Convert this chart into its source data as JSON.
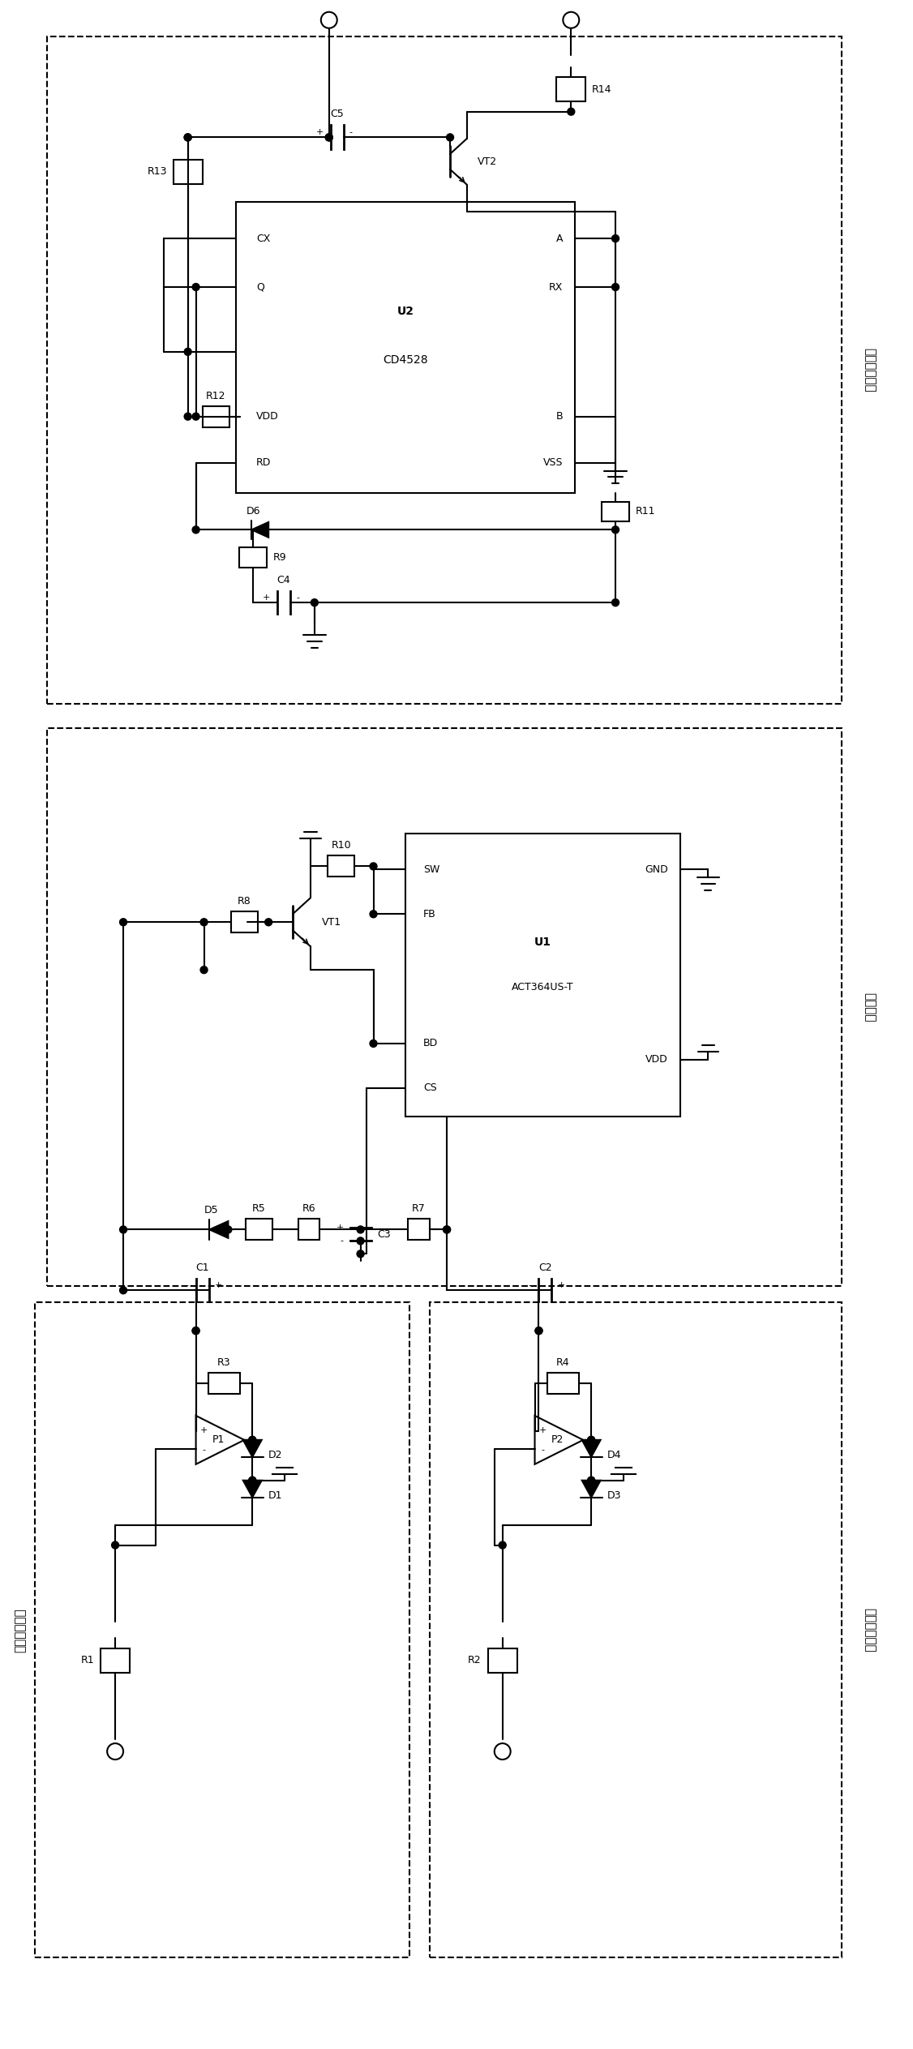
{
  "fig_width": 11.26,
  "fig_height": 25.27,
  "bg_color": "#ffffff",
  "line_color": "#000000",
  "labels": {
    "phase_circuit": "相位处理电路",
    "coupling_circuit": "耦合电路",
    "current_input": "电流输入电路",
    "voltage_input": "电压输入电路",
    "U2": "U2",
    "CD4528": "CD4528",
    "U1": "U1",
    "ACT364US_T": "ACT364US-T"
  }
}
